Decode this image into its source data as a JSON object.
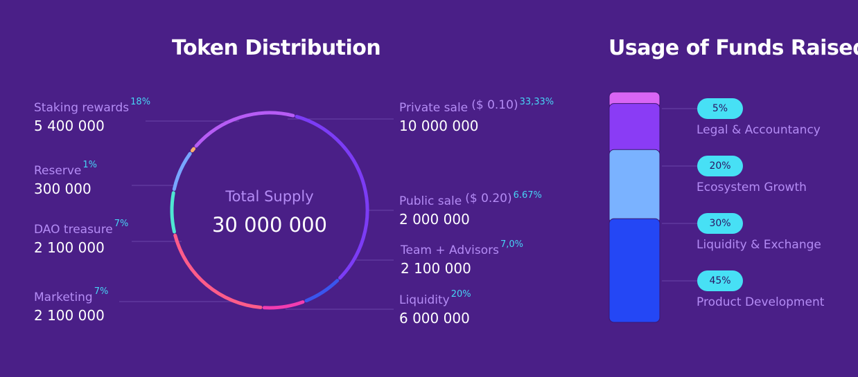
{
  "left_title": "Token Distribution",
  "right_title": "Usage of Funds Raised",
  "total": {
    "label": "Total Supply",
    "value": "30 000 000"
  },
  "colors": {
    "background": "#4a1f87",
    "label": "#b48cf5",
    "percent": "#47d4f5",
    "leader": "#6a45a8"
  },
  "chart_data": [
    {
      "type": "pie",
      "title": "Token Distribution",
      "center_text": "Total Supply 30 000 000",
      "slices": [
        {
          "name": "Private sale",
          "note": "($ 0.10)",
          "percent_label": "33,33%",
          "value": 10000000,
          "value_label": "10 000 000",
          "color": "#7c3cf5"
        },
        {
          "name": "Public sale",
          "note": "($ 0.20)",
          "percent_label": "6.67%",
          "value": 2000000,
          "value_label": "2 000 000",
          "color": "#3a55ee"
        },
        {
          "name": "Team + Advisors",
          "percent_label": "7,0%",
          "value": 2100000,
          "value_label": "2 100 000",
          "color": "#f23cb0"
        },
        {
          "name": "Liquidity",
          "percent_label": "20%",
          "value": 6000000,
          "value_label": "6 000 000",
          "color": "#ff5c8a"
        },
        {
          "name": "Marketing",
          "percent_label": "7%",
          "value": 2100000,
          "value_label": "2 100 000",
          "color": "#4fe6d2"
        },
        {
          "name": "DAO treasure",
          "percent_label": "7%",
          "value": 2100000,
          "value_label": "2 100 000",
          "color": "#78a6ff"
        },
        {
          "name": "Reserve",
          "percent_label": "1%",
          "value": 300000,
          "value_label": "300 000",
          "color": "#ffad6b"
        },
        {
          "name": "Staking rewards",
          "percent_label": "18%",
          "value": 5400000,
          "value_label": "5 400 000",
          "color": "#b65cf5"
        }
      ]
    },
    {
      "type": "bar",
      "title": "Usage of Funds Raised",
      "stacked": true,
      "categories": [
        "Legal & Accountancy",
        "Ecosystem Growth",
        "Liquidity & Exchange",
        "Product Development"
      ],
      "values": [
        5,
        20,
        30,
        45
      ],
      "value_labels": [
        "5%",
        "20%",
        "30%",
        "45%"
      ],
      "colors": [
        "#d965f5",
        "#8a3cf5",
        "#7ab2ff",
        "#2447f5"
      ]
    }
  ]
}
